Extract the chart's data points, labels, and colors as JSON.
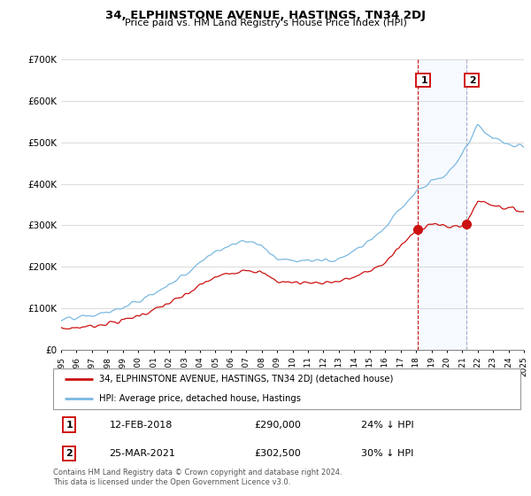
{
  "title": "34, ELPHINSTONE AVENUE, HASTINGS, TN34 2DJ",
  "subtitle": "Price paid vs. HM Land Registry's House Price Index (HPI)",
  "hpi_label": "HPI: Average price, detached house, Hastings",
  "property_label": "34, ELPHINSTONE AVENUE, HASTINGS, TN34 2DJ (detached house)",
  "footnote": "Contains HM Land Registry data © Crown copyright and database right 2024.\nThis data is licensed under the Open Government Licence v3.0.",
  "sale1_date": "12-FEB-2018",
  "sale1_price": "£290,000",
  "sale1_hpi": "24% ↓ HPI",
  "sale1_year": 2018.12,
  "sale1_value": 290000,
  "sale2_date": "25-MAR-2021",
  "sale2_price": "£302,500",
  "sale2_hpi": "30% ↓ HPI",
  "sale2_year": 2021.25,
  "sale2_value": 302500,
  "hpi_color": "#7ab8e0",
  "property_color": "#cc1111",
  "shade_color": "#ddeeff",
  "ylim_min": 0,
  "ylim_max": 700000,
  "ytick_step": 100000,
  "xmin": 1995,
  "xmax": 2025
}
